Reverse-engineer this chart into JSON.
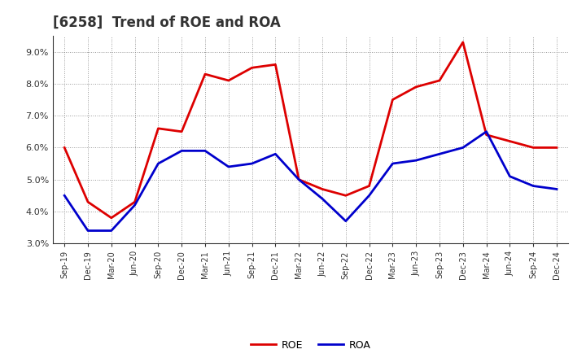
{
  "title": "[6258]  Trend of ROE and ROA",
  "labels": [
    "Sep-19",
    "Dec-19",
    "Mar-20",
    "Jun-20",
    "Sep-20",
    "Dec-20",
    "Mar-21",
    "Jun-21",
    "Sep-21",
    "Dec-21",
    "Mar-22",
    "Jun-22",
    "Sep-22",
    "Dec-22",
    "Mar-23",
    "Jun-23",
    "Sep-23",
    "Dec-23",
    "Mar-24",
    "Jun-24",
    "Sep-24",
    "Dec-24"
  ],
  "ROE": [
    6.0,
    4.3,
    3.8,
    4.3,
    6.6,
    6.5,
    8.3,
    8.1,
    8.5,
    8.6,
    5.0,
    4.7,
    4.5,
    4.8,
    7.5,
    7.9,
    8.1,
    9.3,
    6.4,
    6.2,
    6.0,
    6.0
  ],
  "ROA": [
    4.5,
    3.4,
    3.4,
    4.2,
    5.5,
    5.9,
    5.9,
    5.4,
    5.5,
    5.8,
    5.0,
    4.4,
    3.7,
    4.5,
    5.5,
    5.6,
    5.8,
    6.0,
    6.5,
    5.1,
    4.8,
    4.7
  ],
  "ROE_color": "#dd0000",
  "ROA_color": "#0000cc",
  "background_color": "#ffffff",
  "grid_color": "#999999",
  "ylim": [
    3.0,
    9.5
  ],
  "yticks": [
    3.0,
    4.0,
    5.0,
    6.0,
    7.0,
    8.0,
    9.0
  ],
  "title_fontsize": 12,
  "line_width": 2.0
}
